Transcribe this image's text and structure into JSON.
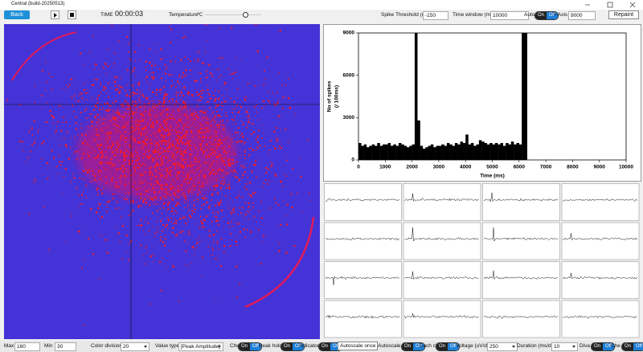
{
  "window": {
    "title": "Central (build-20250513)"
  },
  "toolbar": {
    "back": "Back",
    "time_label": "TIME",
    "time": "00:00:03",
    "temperature_label": "Temperature",
    "temperature": "-℃",
    "spike_threshold_label": "Spike Threshold (uV)",
    "spike_threshold": "-150",
    "time_window_label": "Time window (ms)",
    "time_window": "10000",
    "auto_label": "Auto",
    "auto_toggle": {
      "on": "On",
      "off": "Off"
    },
    "y_axis_label": "Y-Axis",
    "y_axis": "9000",
    "repaint": "Repaint"
  },
  "chart_data": {
    "type": "histogram",
    "y_label": "No of spikes",
    "y_label_unit": "(/ 100ms)",
    "x_label": "Time (ms)",
    "color": "#000000",
    "bins": [
      0,
      100,
      200,
      300,
      400,
      500,
      600,
      700,
      800,
      900,
      1000,
      1100,
      1200,
      1300,
      1400,
      1500,
      1600,
      1700,
      1800,
      1900,
      2000,
      2100,
      2200,
      2300,
      2400,
      2500,
      2600,
      2700,
      2800,
      2900,
      3000,
      3100,
      3200,
      3300,
      3400,
      3500,
      3600,
      3700,
      3800,
      3900,
      4000,
      4100,
      4200,
      4300,
      4400,
      4500,
      4600,
      4700,
      4800,
      4900,
      5000,
      5100,
      5200,
      5300,
      5400,
      5500,
      5600,
      5700,
      5800,
      5900,
      6000,
      6100,
      6200,
      6300
    ],
    "values": [
      1200,
      1000,
      1100,
      900,
      1000,
      1100,
      1000,
      1200,
      1000,
      1100,
      1100,
      1200,
      1000,
      1100,
      1000,
      1200,
      1100,
      1000,
      900,
      1000,
      1100,
      9000,
      2800,
      1000,
      800,
      900,
      1000,
      1100,
      900,
      1000,
      1000,
      1100,
      1000,
      1200,
      1100,
      1000,
      1200,
      1100,
      1300,
      1200,
      1800,
      1100,
      1200,
      1000,
      1100,
      1400,
      1300,
      1200,
      1100,
      1200,
      1100,
      1200,
      1100,
      1200,
      1000,
      1200,
      1100,
      1300,
      1100,
      1200,
      1100,
      9000,
      9000
    ],
    "xlim": [
      0,
      10000
    ],
    "ylim": [
      0,
      9000
    ],
    "xticks": [
      0,
      1000,
      2000,
      3000,
      4000,
      5000,
      6000,
      7000,
      8000,
      9000,
      10000
    ],
    "yticks": [
      0,
      3000,
      6000,
      9000
    ]
  },
  "footer": {
    "max_label": "Max",
    "max": "160",
    "min_label": "Min",
    "min": "30",
    "color_division_label": "Color division",
    "color_division": "20",
    "value_type_label": "Value type",
    "value_type": "[Peak Amplitude]",
    "che_label": "Che",
    "che_toggle": {
      "on": "On",
      "off": "Off"
    },
    "peak_hold_label": "Peak hold",
    "peak_hold_toggle": {
      "on": "On",
      "off": "Off"
    },
    "indicator_label": "Indicator",
    "indicator_toggle": {
      "on": "On",
      "off": "Off"
    },
    "autoscale_once": "Autoscale once",
    "autoscale_label": "Autoscale",
    "autoscale_toggle": {
      "on": "On",
      "off": "Off"
    },
    "each_ch_label": "Each ch",
    "each_ch_toggle": {
      "on": "On",
      "off": "Off"
    },
    "voltage_label": "Voltage (uV/div)",
    "voltage": "250",
    "duration_label": "Duration (ms/div)",
    "duration": "10",
    "diva_label": "Diva",
    "diva_toggle": {
      "on": "On",
      "off": "Off"
    },
    "che2_label": "Che",
    "che2_toggle": {
      "on": "On",
      "off": "Off"
    }
  }
}
